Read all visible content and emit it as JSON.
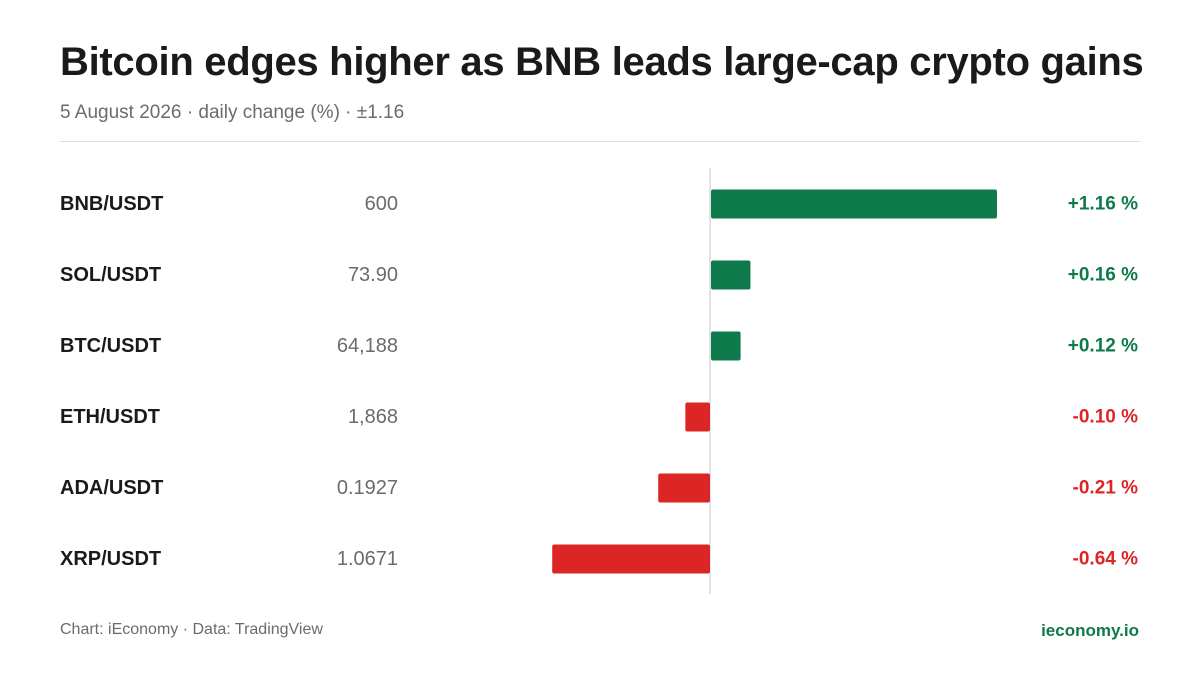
{
  "header": {
    "title": "Bitcoin edges higher as BNB leads large-cap crypto gains",
    "subtitle": "5 August 2026 · daily change (%) · ±1.16"
  },
  "footer": {
    "source": "Chart: iEconomy · Data: TradingView",
    "brand": "ieconomy.io"
  },
  "colors": {
    "positive": "#0e7a4c",
    "negative": "#dc2626",
    "axis": "#d9d9d9",
    "label": "#1a1a1a",
    "price": "#6b6b6b"
  },
  "chart_data": {
    "type": "bar",
    "orientation": "horizontal",
    "categories": [
      "BNB/USDT",
      "SOL/USDT",
      "BTC/USDT",
      "ETH/USDT",
      "ADA/USDT",
      "XRP/USDT"
    ],
    "prices": [
      "600",
      "73.90",
      "64,188",
      "1,868",
      "0.1927",
      "1.0671"
    ],
    "values": [
      1.16,
      0.16,
      0.12,
      -0.1,
      -0.21,
      -0.64
    ],
    "value_labels": [
      "+1.16 %",
      "+0.16 %",
      "+0.12 %",
      "-0.10 %",
      "-0.21 %",
      "-0.64 %"
    ],
    "xlim": [
      -1.16,
      1.16
    ],
    "grid": false,
    "legend": "none"
  }
}
